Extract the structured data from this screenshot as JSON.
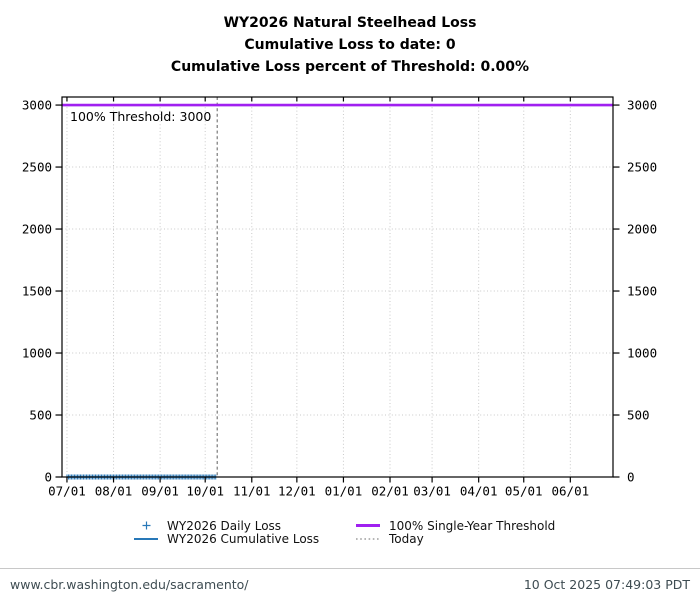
{
  "titles": {
    "line1": "WY2026 Natural Steelhead Loss",
    "line2": "Cumulative Loss to date: 0",
    "line3": "Cumulative Loss percent of Threshold: 0.00%"
  },
  "chart_data": {
    "type": "line",
    "title": "WY2026 Natural Steelhead Loss",
    "subtitle": [
      "Cumulative Loss to date: 0",
      "Cumulative Loss percent of Threshold: 0.00%"
    ],
    "x_ticks": [
      {
        "day": 0,
        "label": "07/01"
      },
      {
        "day": 31,
        "label": "08/01"
      },
      {
        "day": 62,
        "label": "09/01"
      },
      {
        "day": 92,
        "label": "10/01"
      },
      {
        "day": 123,
        "label": "11/01"
      },
      {
        "day": 153,
        "label": "12/01"
      },
      {
        "day": 184,
        "label": "01/01"
      },
      {
        "day": 215,
        "label": "02/01"
      },
      {
        "day": 243,
        "label": "03/01"
      },
      {
        "day": 274,
        "label": "04/01"
      },
      {
        "day": 304,
        "label": "05/01"
      },
      {
        "day": 335,
        "label": "06/01"
      }
    ],
    "y_ticks": [
      0,
      500,
      1000,
      1500,
      2000,
      2500,
      3000
    ],
    "ylim": [
      0,
      3065
    ],
    "xlim_days": [
      -3.3,
      363.4
    ],
    "grid": true,
    "legend_position": "bottom",
    "threshold": {
      "value": 3000,
      "label": "100% Threshold: 3000"
    },
    "today": {
      "day": 100,
      "label": "Today"
    },
    "series": [
      {
        "name": "WY2026 Daily Loss",
        "style": "points",
        "marker": "plus",
        "start_day": 0,
        "end_day": 99,
        "start_label": "07/01",
        "end_label": "10/08",
        "constant_value": 0
      },
      {
        "name": "WY2026 Cumulative Loss",
        "style": "line",
        "start_day": 0,
        "end_day": 99,
        "start_label": "07/01",
        "end_label": "10/08",
        "constant_value": 0
      }
    ]
  },
  "legend": {
    "daily": "WY2026 Daily Loss",
    "cumulative": "WY2026 Cumulative Loss",
    "threshold": "100% Single-Year Threshold",
    "today": "Today"
  },
  "colors": {
    "series_blue": "#2878b8",
    "threshold_purple": "#a020f0",
    "today_gray": "#7a7a7a",
    "grid_gray": "#c9c9c9",
    "axis_black": "#000000"
  },
  "footer": {
    "url": "www.cbr.washington.edu/sacramento/",
    "timestamp": "10 Oct 2025 07:49:03 PDT"
  }
}
